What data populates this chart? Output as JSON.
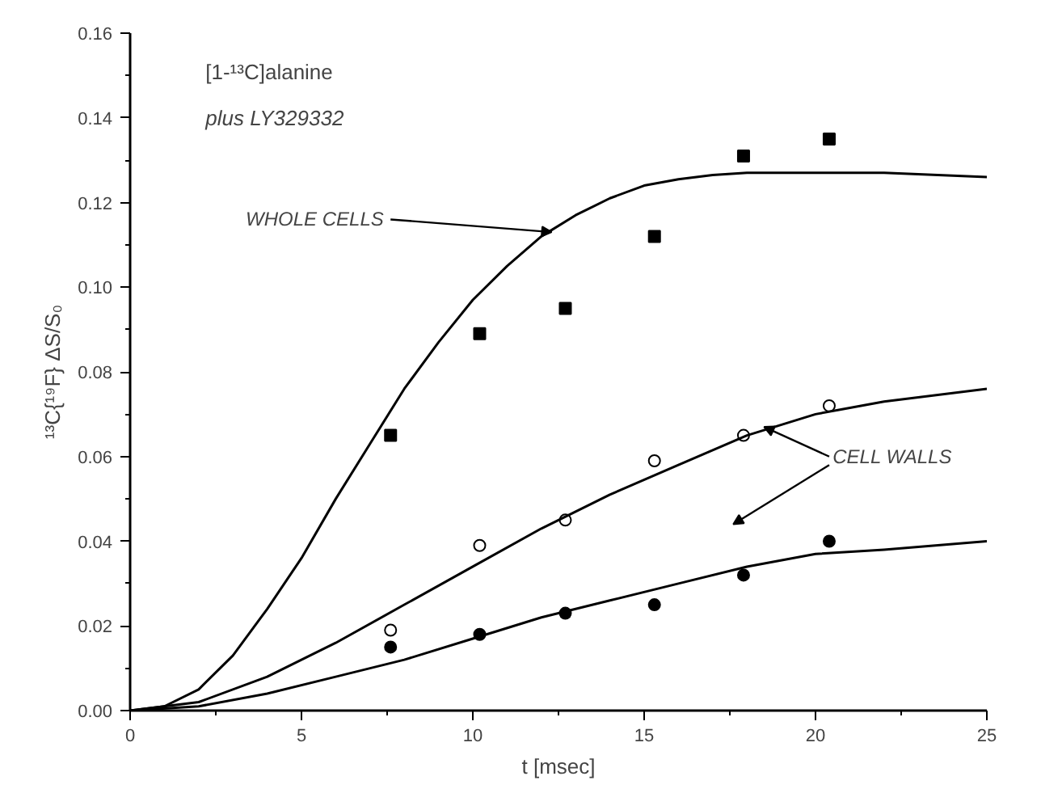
{
  "chart_data": {
    "type": "scatter",
    "xlabel": "t [msec]",
    "ylabel": "¹³C{¹⁹F} ΔS/S₀",
    "xlim": [
      0,
      25
    ],
    "ylim": [
      0,
      0.16
    ],
    "xticks": [
      0,
      5,
      10,
      15,
      20,
      25
    ],
    "yticks": [
      {
        "value": 0,
        "label": "0.00"
      },
      {
        "value": 0.02,
        "label": "0.02"
      },
      {
        "value": 0.04,
        "label": "0.04"
      },
      {
        "value": 0.06,
        "label": "0.06"
      },
      {
        "value": 0.08,
        "label": "0.08"
      },
      {
        "value": 0.1,
        "label": "0.10"
      },
      {
        "value": 0.12,
        "label": "0.12"
      },
      {
        "value": 0.14,
        "label": "0.14"
      },
      {
        "value": 0.16,
        "label": "0.16"
      }
    ],
    "grid": false,
    "annotations": [
      "[1-¹³C]alanine",
      "plus LY329332",
      {
        "text": "WHOLE CELLS",
        "x": 12.3,
        "y": 0.113
      },
      {
        "text": "CELL WALLS",
        "x": 18.5,
        "y": 0.067
      }
    ],
    "series": [
      {
        "marker": "square",
        "color": "#000000",
        "x": [
          7.6,
          10.2,
          12.7,
          15.3,
          17.9,
          20.4
        ],
        "values": [
          0.065,
          0.089,
          0.095,
          0.112,
          0.131,
          0.135
        ]
      },
      {
        "marker": "circle",
        "color": "#ffffff",
        "x": [
          7.6,
          10.2,
          12.7,
          15.3,
          17.9,
          20.4
        ],
        "values": [
          0.019,
          0.039,
          0.045,
          0.059,
          0.065,
          0.072
        ]
      },
      {
        "marker": "circle",
        "color": "#000000",
        "x": [
          7.6,
          10.2,
          12.7,
          15.3,
          17.9,
          20.4
        ],
        "values": [
          0.015,
          0.018,
          0.023,
          0.025,
          0.032,
          0.04
        ]
      },
      {
        "type": "line",
        "color": "#000000",
        "x": [
          0,
          1,
          2,
          3,
          4,
          5,
          6,
          7,
          8,
          9,
          10,
          11,
          12,
          13,
          14,
          15,
          16,
          17,
          18,
          20,
          22,
          25
        ],
        "values": [
          0,
          0.001,
          0.005,
          0.013,
          0.024,
          0.036,
          0.05,
          0.063,
          0.076,
          0.087,
          0.097,
          0.105,
          0.112,
          0.117,
          0.121,
          0.124,
          0.1255,
          0.1265,
          0.127,
          0.127,
          0.127,
          0.126
        ]
      },
      {
        "type": "line",
        "color": "#000000",
        "x": [
          0,
          2,
          4,
          6,
          8,
          10,
          12,
          14,
          16,
          18,
          20,
          22,
          25
        ],
        "values": [
          0,
          0.002,
          0.008,
          0.016,
          0.025,
          0.034,
          0.043,
          0.051,
          0.058,
          0.065,
          0.07,
          0.073,
          0.076
        ]
      },
      {
        "type": "line",
        "color": "#000000",
        "x": [
          0,
          2,
          4,
          6,
          8,
          10,
          12,
          14,
          16,
          18,
          20,
          22,
          25
        ],
        "values": [
          0,
          0.001,
          0.004,
          0.008,
          0.012,
          0.017,
          0.022,
          0.026,
          0.03,
          0.034,
          0.037,
          0.038,
          0.04
        ]
      }
    ]
  }
}
